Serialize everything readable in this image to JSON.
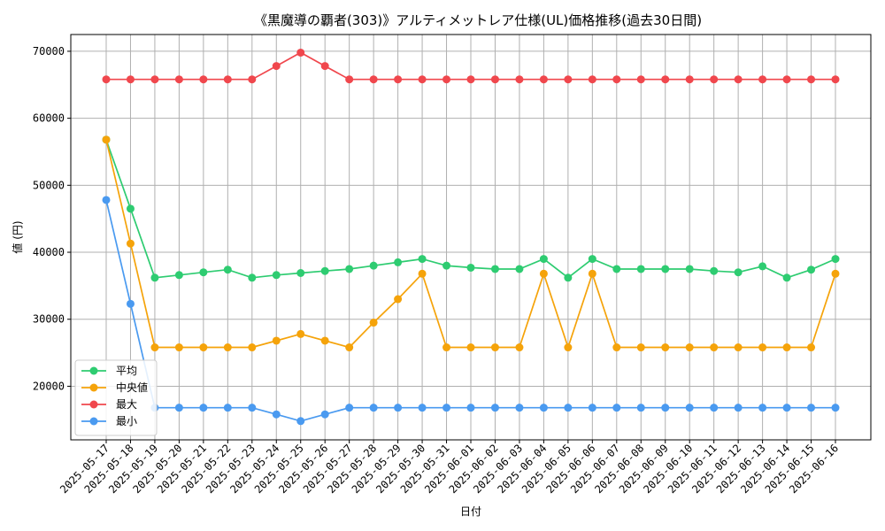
{
  "chart_data": {
    "type": "line",
    "title": "《黒魔導の覇者(303)》アルティメットレア仕様(UL)価格推移(過去30日間)",
    "xlabel": "日付",
    "ylabel": "値 (円)",
    "ylim": [
      12000,
      72500
    ],
    "yticks": [
      20000,
      30000,
      40000,
      50000,
      60000,
      70000
    ],
    "grid": true,
    "legend_position": "lower-left",
    "categories": [
      "2025-05-17",
      "2025-05-18",
      "2025-05-19",
      "2025-05-20",
      "2025-05-21",
      "2025-05-22",
      "2025-05-23",
      "2025-05-24",
      "2025-05-25",
      "2025-05-26",
      "2025-05-27",
      "2025-05-28",
      "2025-05-29",
      "2025-05-30",
      "2025-05-31",
      "2025-06-01",
      "2025-06-02",
      "2025-06-03",
      "2025-06-04",
      "2025-06-05",
      "2025-06-06",
      "2025-06-07",
      "2025-06-08",
      "2025-06-09",
      "2025-06-10",
      "2025-06-11",
      "2025-06-12",
      "2025-06-13",
      "2025-06-14",
      "2025-06-15",
      "2025-06-16"
    ],
    "series": [
      {
        "name": "平均",
        "color": "#2ecc71",
        "values": [
          56800,
          46500,
          36200,
          36600,
          37000,
          37400,
          36200,
          36600,
          36900,
          37200,
          37500,
          38000,
          38500,
          39000,
          38000,
          37700,
          37500,
          37500,
          39000,
          36200,
          39000,
          37500,
          37500,
          37500,
          37500,
          37200,
          37000,
          37900,
          36200,
          37400,
          39000
        ]
      },
      {
        "name": "中央値",
        "color": "#f5a30a",
        "values": [
          56800,
          41300,
          25800,
          25800,
          25800,
          25800,
          25800,
          26800,
          27800,
          26800,
          25800,
          29500,
          33000,
          36800,
          25800,
          25800,
          25800,
          25800,
          36800,
          25800,
          36800,
          25800,
          25800,
          25800,
          25800,
          25800,
          25800,
          25800,
          25800,
          25800,
          36800
        ]
      },
      {
        "name": "最大",
        "color": "#f0474d",
        "values": [
          65800,
          65800,
          65800,
          65800,
          65800,
          65800,
          65800,
          67800,
          69800,
          67800,
          65800,
          65800,
          65800,
          65800,
          65800,
          65800,
          65800,
          65800,
          65800,
          65800,
          65800,
          65800,
          65800,
          65800,
          65800,
          65800,
          65800,
          65800,
          65800,
          65800,
          65800
        ]
      },
      {
        "name": "最小",
        "color": "#4a9af0",
        "values": [
          47800,
          32300,
          16800,
          16800,
          16800,
          16800,
          16800,
          15800,
          14800,
          15800,
          16800,
          16800,
          16800,
          16800,
          16800,
          16800,
          16800,
          16800,
          16800,
          16800,
          16800,
          16800,
          16800,
          16800,
          16800,
          16800,
          16800,
          16800,
          16800,
          16800,
          16800
        ]
      }
    ]
  }
}
